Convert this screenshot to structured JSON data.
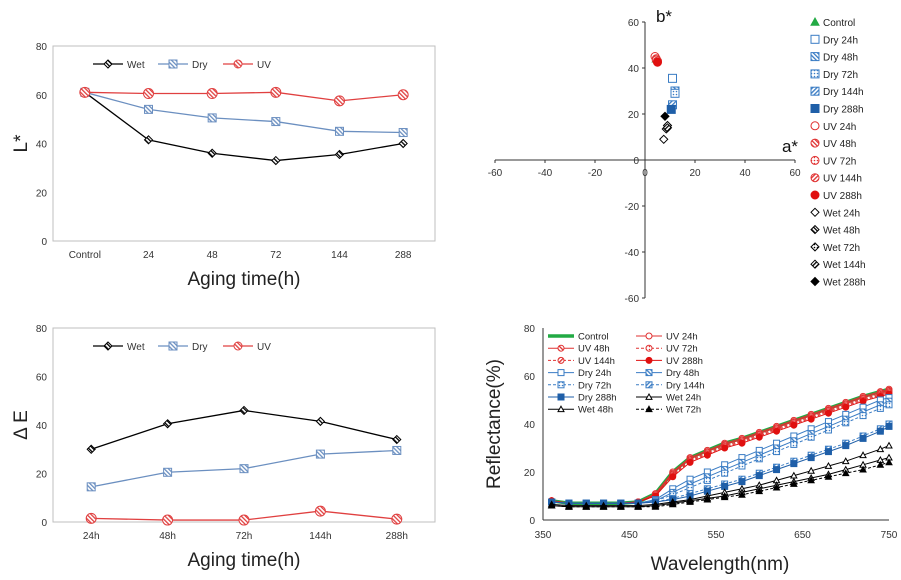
{
  "chart_data": [
    {
      "id": "L",
      "type": "line",
      "ylabel": "L*",
      "xlabel": "Aging time(h)",
      "categories": [
        "Control",
        "24",
        "48",
        "72",
        "144",
        "288"
      ],
      "ylim": [
        0,
        80
      ],
      "yticks": [
        0,
        20,
        40,
        60,
        80
      ],
      "legend_position": "top",
      "series": [
        {
          "name": "Wet",
          "color": "#000000",
          "marker": "diamond",
          "values": [
            61,
            41.5,
            36,
            33,
            35.5,
            40
          ]
        },
        {
          "name": "Dry",
          "color": "#6b8fc0",
          "marker": "square",
          "values": [
            61,
            54,
            50.5,
            49,
            45,
            44.5
          ]
        },
        {
          "name": "UV",
          "color": "#e04040",
          "marker": "circle",
          "values": [
            61,
            60.5,
            60.5,
            61,
            57.5,
            60
          ]
        }
      ]
    },
    {
      "id": "ab",
      "type": "scatter",
      "xlabel": "a*",
      "ylabel": "b*",
      "xlim": [
        -60,
        60
      ],
      "ylim": [
        -60,
        60
      ],
      "xticks": [
        -60,
        -40,
        -20,
        0,
        20,
        40,
        60
      ],
      "yticks": [
        -60,
        -40,
        -20,
        0,
        20,
        40,
        60
      ],
      "legend_position": "right",
      "series": [
        {
          "name": "Control",
          "color": "#22aa44",
          "marker": "triangle-filled",
          "points": [
            [
              4.5,
              44
            ]
          ]
        },
        {
          "name": "Dry 24h",
          "color": "#3a7cc4",
          "marker": "square-open",
          "points": [
            [
              11,
              35.5
            ]
          ]
        },
        {
          "name": "Dry 48h",
          "color": "#3a7cc4",
          "marker": "square-striped",
          "points": [
            [
              12,
              30
            ]
          ]
        },
        {
          "name": "Dry 72h",
          "color": "#3a7cc4",
          "marker": "square-dotted",
          "points": [
            [
              12,
              29
            ]
          ]
        },
        {
          "name": "Dry 144h",
          "color": "#3a7cc4",
          "marker": "square-hatched",
          "points": [
            [
              11,
              24
            ]
          ]
        },
        {
          "name": "Dry 288h",
          "color": "#1f5fa8",
          "marker": "square-filled",
          "points": [
            [
              10.5,
              22
            ]
          ]
        },
        {
          "name": "UV 24h",
          "color": "#e03030",
          "marker": "circle-open",
          "points": [
            [
              4,
              45
            ]
          ]
        },
        {
          "name": "UV 48h",
          "color": "#e03030",
          "marker": "circle-striped",
          "points": [
            [
              4.5,
              44
            ]
          ]
        },
        {
          "name": "UV 72h",
          "color": "#e03030",
          "marker": "circle-dotted",
          "points": [
            [
              4.5,
              43.5
            ]
          ]
        },
        {
          "name": "UV 144h",
          "color": "#e03030",
          "marker": "circle-hatched",
          "points": [
            [
              5,
              43
            ]
          ]
        },
        {
          "name": "UV 288h",
          "color": "#e01010",
          "marker": "circle-filled",
          "points": [
            [
              5,
              42.5
            ]
          ]
        },
        {
          "name": "Wet 24h",
          "color": "#000000",
          "marker": "diamond-open",
          "points": [
            [
              7.5,
              9
            ]
          ]
        },
        {
          "name": "Wet 48h",
          "color": "#000000",
          "marker": "diamond-striped",
          "points": [
            [
              8.5,
              13.5
            ]
          ]
        },
        {
          "name": "Wet 72h",
          "color": "#000000",
          "marker": "diamond-dotted",
          "points": [
            [
              9,
              15
            ]
          ]
        },
        {
          "name": "Wet 144h",
          "color": "#000000",
          "marker": "diamond-hatched",
          "points": [
            [
              9,
              14
            ]
          ]
        },
        {
          "name": "Wet 288h",
          "color": "#000000",
          "marker": "diamond-filled",
          "points": [
            [
              8,
              19
            ]
          ]
        }
      ]
    },
    {
      "id": "dE",
      "type": "line",
      "ylabel": "Δ E",
      "xlabel": "Aging time(h)",
      "categories": [
        "24h",
        "48h",
        "72h",
        "144h",
        "288h"
      ],
      "ylim": [
        0,
        80
      ],
      "yticks": [
        0,
        20,
        40,
        60,
        80
      ],
      "legend_position": "top",
      "series": [
        {
          "name": "Wet",
          "color": "#000000",
          "marker": "diamond",
          "values": [
            30,
            40.5,
            46,
            41.5,
            34
          ]
        },
        {
          "name": "Dry",
          "color": "#6b8fc0",
          "marker": "square",
          "values": [
            14.5,
            20.5,
            22,
            28,
            29.5
          ]
        },
        {
          "name": "UV",
          "color": "#e04040",
          "marker": "circle",
          "values": [
            1.5,
            0.8,
            0.8,
            4.5,
            1.2
          ]
        }
      ]
    },
    {
      "id": "R",
      "type": "line",
      "xlabel": "Wavelength(nm)",
      "ylabel": "Reflectance(%)",
      "xlim": [
        350,
        750
      ],
      "ylim": [
        0,
        80
      ],
      "xticks": [
        350,
        450,
        550,
        650,
        750
      ],
      "yticks": [
        0,
        20,
        40,
        60,
        80
      ],
      "legend_position": "top-inside",
      "x": [
        360,
        380,
        400,
        420,
        440,
        460,
        480,
        500,
        520,
        540,
        560,
        580,
        600,
        620,
        640,
        660,
        680,
        700,
        720,
        740,
        750
      ],
      "series": [
        {
          "name": "Control",
          "color": "#22aa44",
          "style": "solid",
          "marker": "none",
          "values": [
            8,
            7,
            7,
            7,
            7,
            7.5,
            11,
            20,
            26,
            29,
            32,
            34,
            36.5,
            39,
            41.5,
            44,
            46.5,
            49,
            51.5,
            53.5,
            54.5
          ]
        },
        {
          "name": "UV 24h",
          "color": "#e03030",
          "style": "solid",
          "marker": "circle-open",
          "values": [
            8,
            7,
            7,
            7,
            7,
            7.5,
            11,
            20,
            26,
            29,
            32,
            34,
            36.5,
            39,
            41.5,
            44,
            46.5,
            49,
            51.5,
            53.5,
            54.5
          ]
        },
        {
          "name": "UV 48h",
          "color": "#e03030",
          "style": "solid",
          "marker": "circle-striped",
          "values": [
            8,
            7,
            7,
            7,
            7,
            7.5,
            10.5,
            19.5,
            25.5,
            28.5,
            31.5,
            33.5,
            36,
            38.5,
            41,
            43.5,
            46,
            48.5,
            51,
            53,
            54
          ]
        },
        {
          "name": "UV 72h",
          "color": "#e03030",
          "style": "dashed",
          "marker": "circle-dotted",
          "values": [
            8,
            7,
            7,
            7,
            7,
            7.5,
            10.5,
            19,
            25,
            28,
            31,
            33,
            35.5,
            38,
            40.5,
            43,
            45.5,
            48,
            50.5,
            52.5,
            53.5
          ]
        },
        {
          "name": "UV 144h",
          "color": "#e03030",
          "style": "dashed",
          "marker": "circle-hatched",
          "values": [
            8,
            7,
            7,
            7,
            7,
            7.5,
            10,
            18.5,
            24.5,
            27.5,
            30.5,
            32.5,
            35,
            37.5,
            40,
            42.5,
            45,
            47.5,
            50,
            52,
            53
          ]
        },
        {
          "name": "UV 288h",
          "color": "#e01010",
          "style": "solid",
          "marker": "circle-filled",
          "values": [
            8,
            7,
            7,
            7,
            7,
            7.5,
            10,
            18,
            24,
            27,
            30,
            32,
            34.5,
            37,
            39.5,
            42,
            44.5,
            47,
            49.5,
            51.5,
            52.5
          ]
        },
        {
          "name": "Dry 24h",
          "color": "#3a7cc4",
          "style": "solid",
          "marker": "square-open",
          "values": [
            7.5,
            7,
            7,
            7,
            7,
            7,
            8.5,
            13,
            17,
            20,
            23,
            26,
            29,
            32,
            35,
            38,
            41,
            44,
            47,
            50,
            51
          ]
        },
        {
          "name": "Dry 48h",
          "color": "#3a7cc4",
          "style": "solid",
          "marker": "square-striped",
          "values": [
            7.5,
            7,
            7,
            7,
            7,
            7,
            8,
            11.5,
            15,
            18,
            21,
            24,
            27,
            30,
            33,
            36,
            39,
            42,
            45,
            48,
            49.5
          ]
        },
        {
          "name": "Dry 72h",
          "color": "#3a7cc4",
          "style": "dashed",
          "marker": "square-dotted",
          "values": [
            7.5,
            7,
            7,
            7,
            7,
            7,
            8,
            10.5,
            13.5,
            16.5,
            19.5,
            22.5,
            25.5,
            28.5,
            31.5,
            34.5,
            37.5,
            40.5,
            43.5,
            46.5,
            48
          ]
        },
        {
          "name": "Dry 144h",
          "color": "#3a7cc4",
          "style": "dashed",
          "marker": "square-hatched",
          "values": [
            7.5,
            7,
            7,
            7,
            7,
            7,
            7.5,
            9,
            11,
            13,
            15,
            17,
            19.5,
            22,
            24.5,
            27,
            29.5,
            32,
            35,
            38,
            40
          ]
        },
        {
          "name": "Dry 288h",
          "color": "#1f5fa8",
          "style": "solid",
          "marker": "square-filled",
          "values": [
            7.5,
            7,
            7,
            7,
            7,
            7,
            7.5,
            8.5,
            10,
            12,
            14,
            16,
            18.5,
            21,
            23.5,
            26,
            28.5,
            31,
            34,
            37,
            39
          ]
        },
        {
          "name": "Wet 24h",
          "color": "#000000",
          "style": "solid",
          "marker": "triangle-open",
          "values": [
            6.5,
            6,
            6,
            6,
            6,
            6,
            6.5,
            7.5,
            8.5,
            10,
            11.5,
            13,
            14.5,
            16.5,
            18.5,
            20.5,
            22.5,
            24.5,
            27,
            29.5,
            31
          ]
        },
        {
          "name": "Wet 48h",
          "color": "#000000",
          "style": "solid",
          "marker": "triangle-open",
          "values": [
            6,
            5.5,
            5.5,
            5.5,
            5.5,
            5.5,
            6,
            7,
            8,
            9,
            10,
            11.5,
            13,
            14.5,
            16,
            17.5,
            19,
            21,
            23,
            25,
            26
          ]
        },
        {
          "name": "Wet 72h",
          "color": "#000000",
          "style": "dashed",
          "marker": "triangle-filled",
          "values": [
            6,
            5.5,
            5.5,
            5.5,
            5.5,
            5.5,
            5.5,
            6.5,
            7.5,
            8.5,
            9.5,
            10.5,
            12,
            13.5,
            15,
            16.5,
            18,
            19.5,
            21,
            23,
            24
          ]
        }
      ]
    }
  ]
}
